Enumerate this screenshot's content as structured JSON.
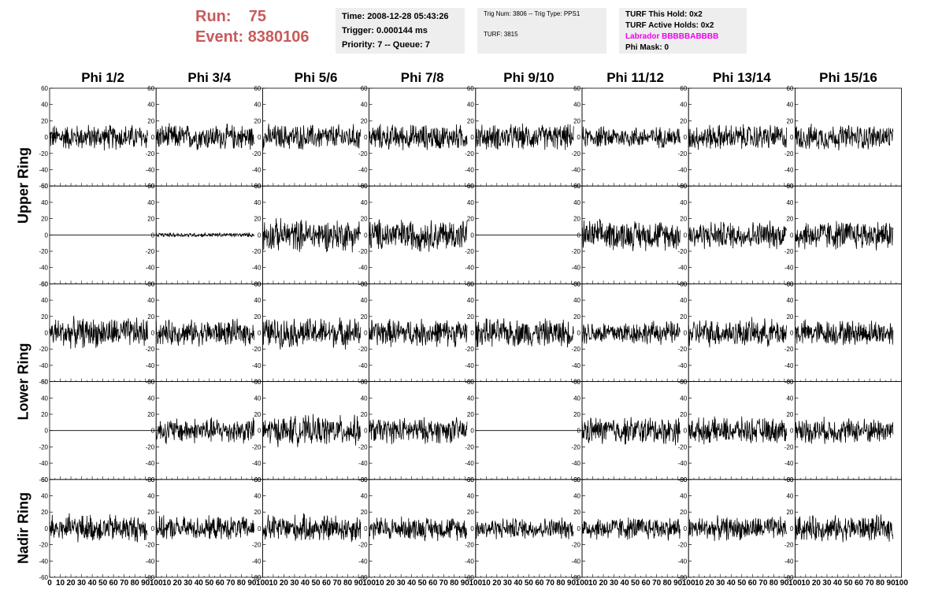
{
  "header": {
    "run_label": "Run:",
    "run_value": "75",
    "event_label": "Event:",
    "event_value": "8380106",
    "time_line": "Time: 2008-12-28 05:43:26",
    "trigger_line": "Trigger: 0.000144 ms",
    "priority_line": "Priority: 7 -- Queue: 7",
    "trig_num_line": "Trig Num: 3806 -- Trig Type: PPS1",
    "turf_line": "TURF: 3815",
    "turf_hold_line": "TURF This Hold: 0x2",
    "turf_active_line": "TURF Active Holds: 0x2",
    "labrador_line": "Labrador BBBBBABBBB",
    "phi_mask_line": "Phi Mask: 0"
  },
  "colors": {
    "run_text": "#c85a5a",
    "labrador_text": "#ee00ee",
    "trace": "#000000",
    "info_bg": "#eeeeee"
  },
  "chart_data": {
    "type": "line",
    "columns": [
      "Phi 1/2",
      "Phi 3/4",
      "Phi 5/6",
      "Phi 7/8",
      "Phi 9/10",
      "Phi 11/12",
      "Phi 13/14",
      "Phi 15/16"
    ],
    "ring_labels": [
      "Upper Ring",
      "Lower Ring",
      "Nadir Ring"
    ],
    "rows": 5,
    "xlim": [
      0,
      100
    ],
    "ylim": [
      -60,
      60
    ],
    "x_ticks": [
      "0",
      "10",
      "20",
      "30",
      "40",
      "50",
      "60",
      "70",
      "80",
      "90",
      "100"
    ],
    "y_ticks": [
      "-60",
      "-40",
      "-20",
      "0",
      "20",
      "40",
      "60"
    ],
    "traces_amplitude": [
      [
        12,
        12,
        12,
        12,
        12,
        10,
        12,
        12
      ],
      [
        0,
        2,
        15,
        15,
        0,
        14,
        13,
        14
      ],
      [
        14,
        12,
        14,
        13,
        13,
        11,
        13,
        12
      ],
      [
        0,
        12,
        14,
        12,
        0,
        13,
        12,
        12
      ],
      [
        13,
        11,
        13,
        11,
        10,
        11,
        11,
        12
      ]
    ]
  }
}
